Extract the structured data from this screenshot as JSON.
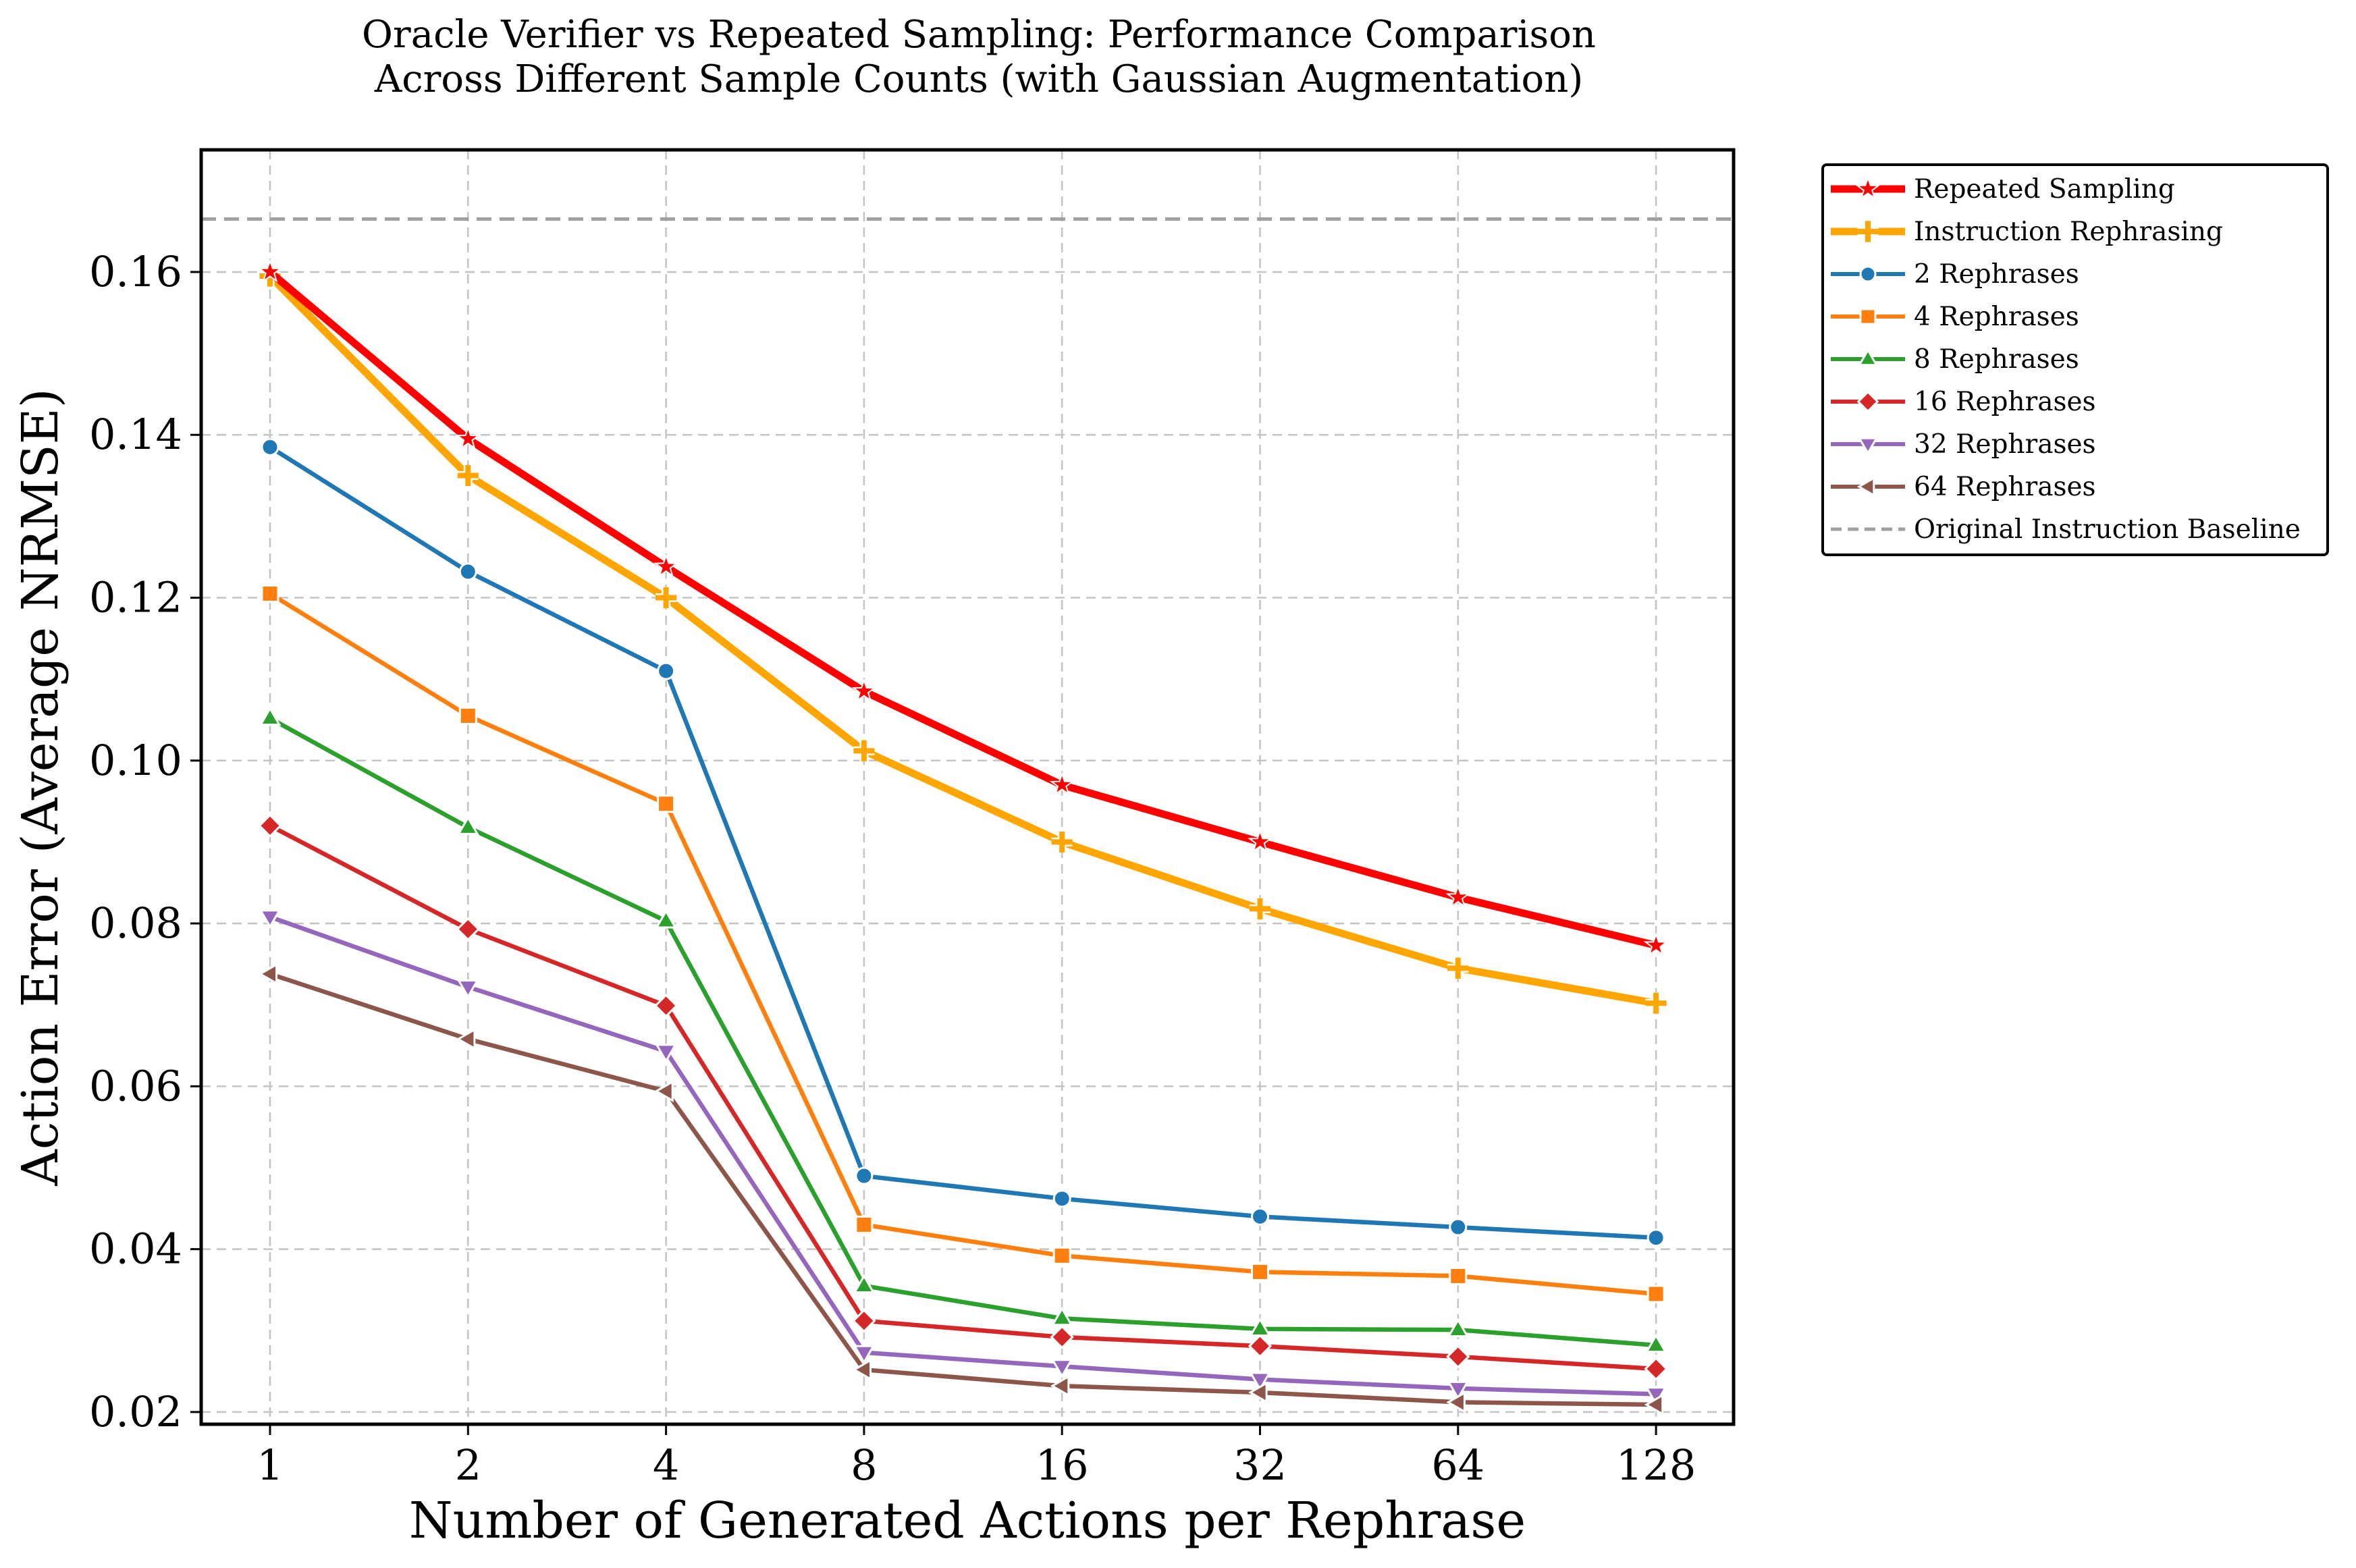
{
  "chart_data": {
    "type": "line",
    "title": "Oracle Verifier vs Repeated Sampling: Performance Comparison",
    "subtitle": "Across Different Sample Counts (with Gaussian Augmentation)",
    "xlabel": "Number of Generated Actions per Rephrase",
    "ylabel": "Action Error (Average NRMSE)",
    "x": [
      "1",
      "2",
      "4",
      "8",
      "16",
      "32",
      "64",
      "128"
    ],
    "x_scale": "log2",
    "ylim": [
      0.0185,
      0.175
    ],
    "yticks": [
      "0.02",
      "0.04",
      "0.06",
      "0.08",
      "0.10",
      "0.12",
      "0.14",
      "0.16"
    ],
    "grid": true,
    "legend_position": "outside right, top",
    "series": [
      {
        "name": "Repeated Sampling",
        "color": "#ff0000",
        "marker": "star",
        "values": [
          0.16,
          0.1395,
          0.1238,
          0.1085,
          0.097,
          0.09,
          0.0832,
          0.0773
        ]
      },
      {
        "name": "Instruction Rephrasing",
        "color": "#ffa500",
        "marker": "plus",
        "values": [
          0.1595,
          0.135,
          0.12,
          0.1012,
          0.09,
          0.0818,
          0.0745,
          0.0702
        ]
      },
      {
        "name": "2 Rephrases",
        "color": "#1f77b4",
        "marker": "circle",
        "values": [
          0.1385,
          0.1232,
          0.111,
          0.049,
          0.0462,
          0.044,
          0.0427,
          0.0414
        ]
      },
      {
        "name": "4 Rephrases",
        "color": "#ff7f0e",
        "marker": "square",
        "values": [
          0.1205,
          0.1055,
          0.0947,
          0.043,
          0.0392,
          0.0372,
          0.0367,
          0.0345
        ]
      },
      {
        "name": "8 Rephrases",
        "color": "#2ca02c",
        "marker": "triangle-up",
        "values": [
          0.1052,
          0.0918,
          0.0803,
          0.0355,
          0.0315,
          0.0302,
          0.0301,
          0.0282
        ]
      },
      {
        "name": "16 Rephrases",
        "color": "#d62728",
        "marker": "diamond",
        "values": [
          0.092,
          0.0793,
          0.0699,
          0.0312,
          0.0292,
          0.0281,
          0.0268,
          0.0253
        ]
      },
      {
        "name": "32 Rephrases",
        "color": "#9467bd",
        "marker": "triangle-down",
        "values": [
          0.0808,
          0.0722,
          0.0643,
          0.0273,
          0.0256,
          0.024,
          0.0229,
          0.0222
        ]
      },
      {
        "name": "64 Rephrases",
        "color": "#8c564b",
        "marker": "triangle-left",
        "values": [
          0.0738,
          0.0658,
          0.0594,
          0.0252,
          0.0232,
          0.0224,
          0.0212,
          0.0209
        ]
      }
    ],
    "baseline": {
      "name": "Original Instruction Baseline",
      "color": "#a0a0a0",
      "value": 0.1665,
      "style": "dashed"
    }
  }
}
